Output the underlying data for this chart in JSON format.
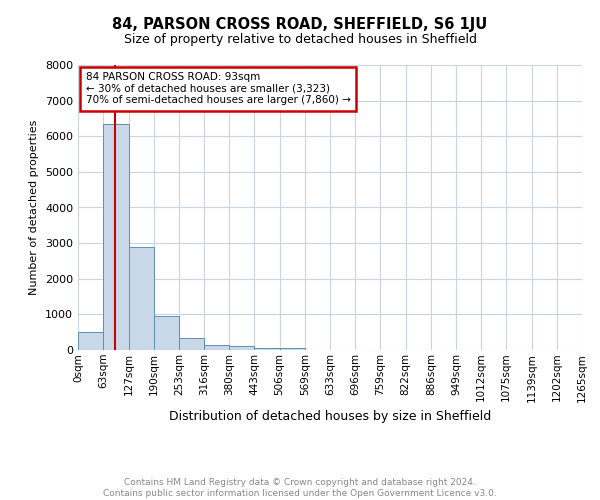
{
  "title": "84, PARSON CROSS ROAD, SHEFFIELD, S6 1JU",
  "subtitle": "Size of property relative to detached houses in Sheffield",
  "xlabel": "Distribution of detached houses by size in Sheffield",
  "ylabel": "Number of detached properties",
  "annotation_line1": "84 PARSON CROSS ROAD: 93sqm",
  "annotation_line2": "← 30% of detached houses are smaller (3,323)",
  "annotation_line3": "70% of semi-detached houses are larger (7,860) →",
  "red_line_x": 93,
  "bin_edges": [
    0,
    63,
    127,
    190,
    253,
    316,
    380,
    443,
    506,
    569,
    633,
    696,
    759,
    822,
    886,
    949,
    1012,
    1075,
    1139,
    1202,
    1265
  ],
  "bar_heights": [
    500,
    6350,
    2900,
    950,
    350,
    150,
    100,
    65,
    50,
    0,
    0,
    0,
    0,
    0,
    0,
    0,
    0,
    0,
    0,
    0
  ],
  "bar_color": "#c8d8e8",
  "bar_edge_color": "#6090b0",
  "red_line_color": "#cc0000",
  "grid_color": "#c8d4e4",
  "annotation_box_edge_color": "#cc0000",
  "background_color": "#ffffff",
  "ylim": [
    0,
    8000
  ],
  "footer_line1": "Contains HM Land Registry data © Crown copyright and database right 2024.",
  "footer_line2": "Contains public sector information licensed under the Open Government Licence v3.0.",
  "tick_labels": [
    "0sqm",
    "63sqm",
    "127sqm",
    "190sqm",
    "253sqm",
    "316sqm",
    "380sqm",
    "443sqm",
    "506sqm",
    "569sqm",
    "633sqm",
    "696sqm",
    "759sqm",
    "822sqm",
    "886sqm",
    "949sqm",
    "1012sqm",
    "1075sqm",
    "1139sqm",
    "1202sqm",
    "1265sqm"
  ],
  "title_fontsize": 10.5,
  "subtitle_fontsize": 9,
  "ylabel_fontsize": 8,
  "xlabel_fontsize": 9,
  "tick_fontsize": 7.5,
  "ytick_fontsize": 8,
  "annotation_fontsize": 7.5,
  "footer_fontsize": 6.5
}
